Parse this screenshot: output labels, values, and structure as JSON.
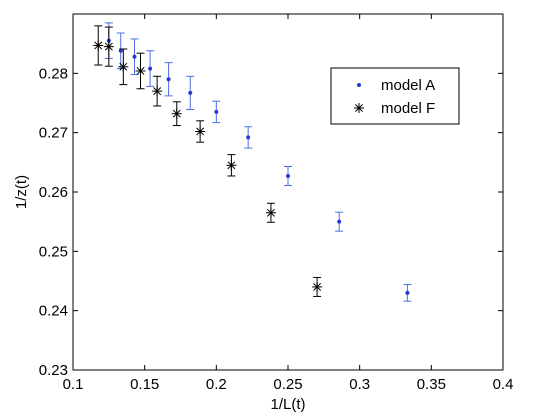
{
  "chart_data": {
    "type": "scatter",
    "title": "",
    "xlabel": "1/L(t)",
    "ylabel": "1/z(t)",
    "xlim": [
      0.1,
      0.4
    ],
    "ylim": [
      0.23,
      0.29
    ],
    "xticks": [
      "0.1",
      "0.15",
      "0.2",
      "0.25",
      "0.3",
      "0.35",
      "0.4"
    ],
    "yticks": [
      "0.23",
      "0.24",
      "0.25",
      "0.26",
      "0.27",
      "0.28"
    ],
    "grid": false,
    "legend_position": "top-right",
    "series": [
      {
        "name": "model A",
        "marker": "dot",
        "color": "#1f3bd6",
        "errorbar_color": "#4a6fe0",
        "points": [
          {
            "x": 0.125,
            "y": 0.2855,
            "err": 0.003
          },
          {
            "x": 0.1333,
            "y": 0.2838,
            "err": 0.003
          },
          {
            "x": 0.1429,
            "y": 0.2828,
            "err": 0.003
          },
          {
            "x": 0.1538,
            "y": 0.2808,
            "err": 0.003
          },
          {
            "x": 0.1667,
            "y": 0.279,
            "err": 0.0028
          },
          {
            "x": 0.1818,
            "y": 0.2767,
            "err": 0.0028
          },
          {
            "x": 0.2,
            "y": 0.2735,
            "err": 0.0018
          },
          {
            "x": 0.2222,
            "y": 0.2692,
            "err": 0.0018
          },
          {
            "x": 0.25,
            "y": 0.2627,
            "err": 0.0016
          },
          {
            "x": 0.2857,
            "y": 0.255,
            "err": 0.0016
          },
          {
            "x": 0.3333,
            "y": 0.243,
            "err": 0.0014
          }
        ]
      },
      {
        "name": "model F",
        "marker": "asterisk",
        "color": "#000000",
        "errorbar_color": "#000000",
        "points": [
          {
            "x": 0.1176,
            "y": 0.2847,
            "err": 0.0033
          },
          {
            "x": 0.125,
            "y": 0.2845,
            "err": 0.0033
          },
          {
            "x": 0.1351,
            "y": 0.2811,
            "err": 0.003
          },
          {
            "x": 0.1471,
            "y": 0.2804,
            "err": 0.003
          },
          {
            "x": 0.1587,
            "y": 0.277,
            "err": 0.0025
          },
          {
            "x": 0.1724,
            "y": 0.2732,
            "err": 0.002
          },
          {
            "x": 0.1887,
            "y": 0.2702,
            "err": 0.0018
          },
          {
            "x": 0.2105,
            "y": 0.2645,
            "err": 0.0018
          },
          {
            "x": 0.2381,
            "y": 0.2565,
            "err": 0.0016
          },
          {
            "x": 0.2703,
            "y": 0.244,
            "err": 0.0016
          }
        ]
      }
    ]
  }
}
